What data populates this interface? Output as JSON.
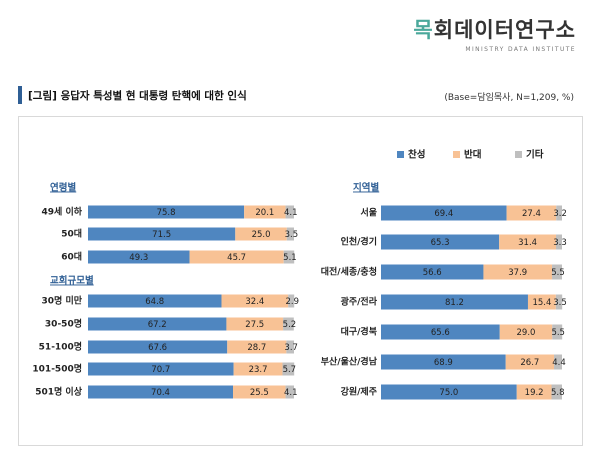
{
  "brand": {
    "accent": "목",
    "rest": "회데이터연구소",
    "sub": "MINISTRY DATA INSTITUTE"
  },
  "title": "[그림] 응답자 특성별 현 대통령 탄핵에 대한 인식",
  "base_note": "(Base=담임목사, N=1,209, %)",
  "colors": {
    "support": "#4f86c0",
    "oppose": "#f8c295",
    "other": "#bfbfbf",
    "section": "#2f5f95",
    "title_bar": "#2f5f95"
  },
  "chart_data": [
    {
      "type": "bar",
      "orientation": "horizontal",
      "stacked": true,
      "groups": [
        {
          "title": "연령별",
          "categories": [
            "49세 이하",
            "50대",
            "60대"
          ]
        },
        {
          "title": "교회규모별",
          "categories": [
            "30명 미만",
            "30-50명",
            "51-100명",
            "101-500명",
            "501명 이상"
          ]
        }
      ],
      "categories": [
        "49세 이하",
        "50대",
        "60대",
        "30명 미만",
        "30-50명",
        "51-100명",
        "101-500명",
        "501명 이상"
      ],
      "series": [
        {
          "name": "찬성",
          "values": [
            75.8,
            71.5,
            49.3,
            64.8,
            67.2,
            67.6,
            70.7,
            70.4
          ]
        },
        {
          "name": "반대",
          "values": [
            20.1,
            25.0,
            45.7,
            32.4,
            27.5,
            28.7,
            23.7,
            25.5
          ]
        },
        {
          "name": "기타",
          "values": [
            4.1,
            3.5,
            5.1,
            2.9,
            5.2,
            3.7,
            5.7,
            4.1
          ]
        }
      ],
      "xlim": [
        0,
        100
      ]
    },
    {
      "type": "bar",
      "orientation": "horizontal",
      "stacked": true,
      "groups": [
        {
          "title": "지역별",
          "categories": [
            "서울",
            "인천/경기",
            "대전/세종/충청",
            "광주/전라",
            "대구/경북",
            "부산/울산/경남",
            "강원/제주"
          ]
        }
      ],
      "categories": [
        "서울",
        "인천/경기",
        "대전/세종/충청",
        "광주/전라",
        "대구/경북",
        "부산/울산/경남",
        "강원/제주"
      ],
      "series": [
        {
          "name": "찬성",
          "values": [
            69.4,
            65.3,
            56.6,
            81.2,
            65.6,
            68.9,
            75.0
          ]
        },
        {
          "name": "반대",
          "values": [
            27.4,
            31.4,
            37.9,
            15.4,
            29.0,
            26.7,
            19.2
          ]
        },
        {
          "name": "기타",
          "values": [
            3.2,
            3.3,
            5.5,
            3.5,
            5.5,
            4.4,
            5.8
          ]
        }
      ],
      "xlim": [
        0,
        100
      ]
    }
  ],
  "legend": {
    "placement": "top-right",
    "items": [
      "찬성",
      "반대",
      "기타"
    ]
  }
}
